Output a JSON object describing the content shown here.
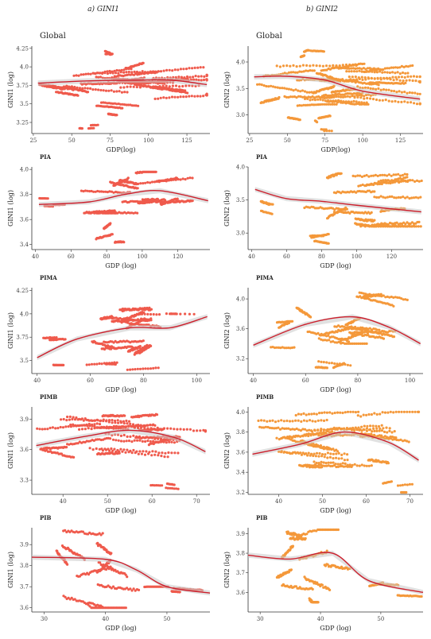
{
  "column_titles": [
    "a) GINI1",
    "b) GINI2"
  ],
  "colors": {
    "gini1": "#ef5a4c",
    "gini2": "#f4983a",
    "smooth": "#cc1f2c",
    "band": "#c8c8c8"
  },
  "chart_data": [
    {
      "type": "scatter",
      "title": "Global",
      "xlabel": "GDP(log)",
      "ylabel": "GINI1 (log)",
      "xlim": [
        24,
        140
      ],
      "ylim": [
        3.1,
        4.28
      ],
      "xticks": [
        25,
        50,
        75,
        100,
        125
      ],
      "yticks": [
        3.25,
        3.5,
        3.75,
        4.0,
        4.25
      ],
      "color": "gini1",
      "clusters": [
        {
          "x": [
            28,
            138
          ],
          "y": [
            3.55,
            4.05
          ],
          "n": 600
        },
        {
          "x": [
            40,
            95
          ],
          "y": [
            3.35,
            3.6
          ],
          "n": 60
        },
        {
          "x": [
            55,
            70
          ],
          "y": [
            3.16,
            3.25
          ],
          "n": 15
        },
        {
          "x": [
            70,
            85
          ],
          "y": [
            4.1,
            4.25
          ],
          "n": 20
        }
      ],
      "smooth": [
        [
          28,
          3.78
        ],
        [
          60,
          3.81
        ],
        [
          90,
          3.82
        ],
        [
          115,
          3.82
        ],
        [
          138,
          3.76
        ]
      ]
    },
    {
      "type": "scatter",
      "title": "Global",
      "xlabel": "GDP(log)",
      "ylabel": "GINI2 (log)",
      "xlim": [
        24,
        140
      ],
      "ylim": [
        2.65,
        4.3
      ],
      "xticks": [
        25,
        50,
        75,
        100,
        125
      ],
      "yticks": [
        3.0,
        3.5,
        4.0
      ],
      "color": "gini2",
      "clusters": [
        {
          "x": [
            28,
            138
          ],
          "y": [
            3.2,
            4.0
          ],
          "n": 600
        },
        {
          "x": [
            45,
            100
          ],
          "y": [
            2.9,
            3.2
          ],
          "n": 60
        },
        {
          "x": [
            55,
            75
          ],
          "y": [
            4.0,
            4.22
          ],
          "n": 40
        },
        {
          "x": [
            65,
            80
          ],
          "y": [
            2.7,
            2.9
          ],
          "n": 10
        }
      ],
      "smooth": [
        [
          28,
          3.72
        ],
        [
          50,
          3.73
        ],
        [
          75,
          3.66
        ],
        [
          100,
          3.45
        ],
        [
          138,
          3.3
        ]
      ]
    },
    {
      "type": "scatter",
      "title": "PIA",
      "xlabel": "GDP (log)",
      "ylabel": "GINI1 (log)",
      "xlim": [
        38,
        138
      ],
      "ylim": [
        3.36,
        4.02
      ],
      "xticks": [
        40,
        60,
        80,
        100,
        120
      ],
      "yticks": [
        3.4,
        3.6,
        3.8,
        4.0
      ],
      "color": "gini1",
      "clusters": [
        {
          "x": [
            42,
            60
          ],
          "y": [
            3.7,
            3.78
          ],
          "n": 20
        },
        {
          "x": [
            65,
            138
          ],
          "y": [
            3.65,
            3.98
          ],
          "n": 400
        },
        {
          "x": [
            72,
            100
          ],
          "y": [
            3.38,
            3.65
          ],
          "n": 60
        }
      ],
      "smooth": [
        [
          42,
          3.72
        ],
        [
          70,
          3.74
        ],
        [
          90,
          3.8
        ],
        [
          110,
          3.83
        ],
        [
          137,
          3.75
        ]
      ]
    },
    {
      "type": "scatter",
      "title": "PIA",
      "xlabel": "GDP (log)",
      "ylabel": "GINI2 (log)",
      "xlim": [
        38,
        138
      ],
      "ylim": [
        2.75,
        4.0
      ],
      "xticks": [
        40,
        60,
        80,
        100,
        120
      ],
      "yticks": [
        3.0,
        3.5,
        4.0
      ],
      "color": "gini2",
      "clusters": [
        {
          "x": [
            45,
            60
          ],
          "y": [
            3.2,
            3.55
          ],
          "n": 30
        },
        {
          "x": [
            65,
            138
          ],
          "y": [
            3.1,
            3.9
          ],
          "n": 400
        },
        {
          "x": [
            72,
            100
          ],
          "y": [
            2.8,
            3.1
          ],
          "n": 50
        }
      ],
      "smooth": [
        [
          42,
          3.66
        ],
        [
          60,
          3.52
        ],
        [
          80,
          3.48
        ],
        [
          100,
          3.42
        ],
        [
          137,
          3.32
        ]
      ]
    },
    {
      "type": "scatter",
      "title": "PIMA",
      "xlabel": "GDP (log)",
      "ylabel": "GINI1 (log)",
      "xlim": [
        38,
        105
      ],
      "ylim": [
        3.36,
        4.28
      ],
      "xticks": [
        40,
        60,
        80,
        100
      ],
      "yticks": [
        3.5,
        3.75,
        4.0,
        4.25
      ],
      "color": "gini1",
      "clusters": [
        {
          "x": [
            40,
            60
          ],
          "y": [
            3.45,
            3.75
          ],
          "n": 40
        },
        {
          "x": [
            55,
            92
          ],
          "y": [
            3.55,
            4.1
          ],
          "n": 350
        },
        {
          "x": [
            58,
            92
          ],
          "y": [
            3.4,
            3.55
          ],
          "n": 40
        },
        {
          "x": [
            78,
            103
          ],
          "y": [
            3.95,
            4.02
          ],
          "n": 20
        }
      ],
      "smooth": [
        [
          40,
          3.53
        ],
        [
          55,
          3.73
        ],
        [
          75,
          3.85
        ],
        [
          90,
          3.85
        ],
        [
          104,
          3.97
        ]
      ]
    },
    {
      "type": "scatter",
      "title": "PIMA",
      "xlabel": "GDP (log)",
      "ylabel": "GINI2 (log)",
      "xlim": [
        38,
        105
      ],
      "ylim": [
        3.0,
        4.15
      ],
      "xticks": [
        40,
        60,
        80,
        100
      ],
      "yticks": [
        3.2,
        3.6,
        4.0
      ],
      "color": "gini2",
      "clusters": [
        {
          "x": [
            40,
            60
          ],
          "y": [
            3.3,
            3.7
          ],
          "n": 40
        },
        {
          "x": [
            55,
            100
          ],
          "y": [
            3.4,
            4.1
          ],
          "n": 350
        },
        {
          "x": [
            60,
            90
          ],
          "y": [
            3.05,
            3.35
          ],
          "n": 40
        }
      ],
      "smooth": [
        [
          40,
          3.38
        ],
        [
          60,
          3.66
        ],
        [
          78,
          3.76
        ],
        [
          92,
          3.62
        ],
        [
          104,
          3.4
        ]
      ]
    },
    {
      "type": "scatter",
      "title": "PIMB",
      "xlabel": "GDP (log)",
      "ylabel": "GINI1 (log)",
      "xlim": [
        33,
        73
      ],
      "ylim": [
        3.16,
        4.02
      ],
      "xticks": [
        40,
        50,
        60,
        70
      ],
      "yticks": [
        3.3,
        3.6,
        3.9
      ],
      "color": "gini1",
      "clusters": [
        {
          "x": [
            34,
            72
          ],
          "y": [
            3.5,
            3.95
          ],
          "n": 500
        },
        {
          "x": [
            58,
            72
          ],
          "y": [
            3.2,
            3.28
          ],
          "n": 20
        }
      ],
      "smooth": [
        [
          34,
          3.64
        ],
        [
          45,
          3.73
        ],
        [
          55,
          3.79
        ],
        [
          65,
          3.72
        ],
        [
          72,
          3.58
        ]
      ]
    },
    {
      "type": "scatter",
      "title": "PIMB",
      "xlabel": "GDP (log)",
      "ylabel": "GINI2 (log)",
      "xlim": [
        33,
        73
      ],
      "ylim": [
        3.18,
        4.05
      ],
      "xticks": [
        40,
        50,
        60,
        70
      ],
      "yticks": [
        3.2,
        3.4,
        3.6,
        3.8,
        4.0
      ],
      "color": "gini2",
      "clusters": [
        {
          "x": [
            34,
            72
          ],
          "y": [
            3.45,
            4.0
          ],
          "n": 500
        },
        {
          "x": [
            62,
            72
          ],
          "y": [
            3.2,
            3.35
          ],
          "n": 20
        }
      ],
      "smooth": [
        [
          34,
          3.58
        ],
        [
          45,
          3.68
        ],
        [
          55,
          3.8
        ],
        [
          65,
          3.7
        ],
        [
          72,
          3.52
        ]
      ]
    },
    {
      "type": "scatter",
      "title": "PIB",
      "xlabel": "GDP (log)",
      "ylabel": "GINI1 (log)",
      "xlim": [
        28,
        57
      ],
      "ylim": [
        3.58,
        3.98
      ],
      "xticks": [
        30,
        40,
        50
      ],
      "yticks": [
        3.6,
        3.7,
        3.8,
        3.9
      ],
      "color": "gini1",
      "clusters": [
        {
          "x": [
            32,
            46
          ],
          "y": [
            3.6,
            3.97
          ],
          "n": 250
        },
        {
          "x": [
            46,
            57
          ],
          "y": [
            3.6,
            3.7
          ],
          "n": 60
        }
      ],
      "smooth": [
        [
          28,
          3.84
        ],
        [
          40,
          3.83
        ],
        [
          45,
          3.78
        ],
        [
          50,
          3.7
        ],
        [
          57,
          3.67
        ]
      ]
    },
    {
      "type": "scatter",
      "title": "PIB",
      "xlabel": "GDP (log)",
      "ylabel": "GINI2 (log)",
      "xlim": [
        28,
        57
      ],
      "ylim": [
        3.5,
        3.93
      ],
      "xticks": [
        30,
        40,
        50
      ],
      "yticks": [
        3.6,
        3.7,
        3.8,
        3.9
      ],
      "color": "gini2",
      "clusters": [
        {
          "x": [
            32,
            46
          ],
          "y": [
            3.55,
            3.92
          ],
          "n": 250
        },
        {
          "x": [
            46,
            57
          ],
          "y": [
            3.55,
            3.65
          ],
          "n": 60
        }
      ],
      "smooth": [
        [
          28,
          3.79
        ],
        [
          35,
          3.77
        ],
        [
          42,
          3.8
        ],
        [
          48,
          3.66
        ],
        [
          57,
          3.6
        ]
      ]
    }
  ]
}
